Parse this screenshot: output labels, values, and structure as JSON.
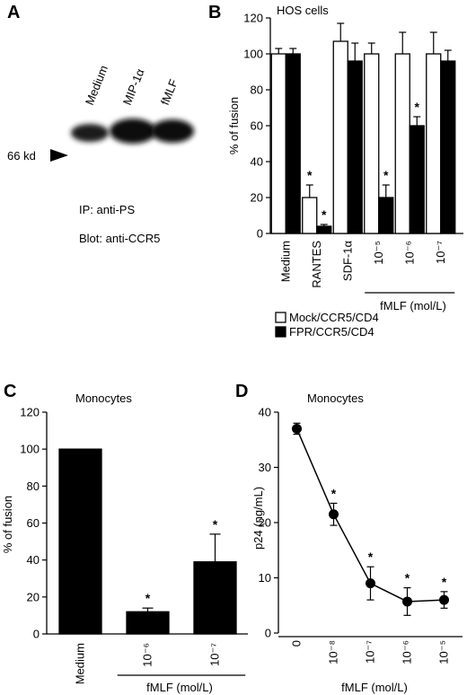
{
  "panel_a": {
    "letter": "A",
    "lanes": [
      "Medium",
      "MIP-1α",
      "fMLF"
    ],
    "marker": "66 kd",
    "ip": "IP: anti-PS",
    "blot": "Blot: anti-CCR5"
  },
  "chart_data": [
    {
      "id": "B",
      "letter": "B",
      "type": "bar",
      "title": "HOS cells",
      "xlabel": "fMLF (mol/L)",
      "ylabel": "% of fusion",
      "ylim": [
        0,
        120
      ],
      "yticks": [
        0,
        20,
        40,
        60,
        80,
        100,
        120
      ],
      "categories": [
        "Medium",
        "RANTES",
        "SDF-1α",
        "10⁻⁵",
        "10⁻⁶",
        "10⁻⁷"
      ],
      "bracket_categories": [
        "10⁻⁵",
        "10⁻⁶",
        "10⁻⁷"
      ],
      "legend_position": "bottom",
      "series": [
        {
          "name": "Mock/CCR5/CD4",
          "color": "#ffffff",
          "values": [
            100,
            20,
            107,
            100,
            100,
            100
          ],
          "errors": [
            3,
            7,
            10,
            6,
            12,
            12
          ],
          "significant": [
            false,
            true,
            false,
            false,
            false,
            false
          ]
        },
        {
          "name": "FPR/CCR5/CD4",
          "color": "#000000",
          "values": [
            100,
            4,
            96,
            20,
            60,
            96
          ],
          "errors": [
            3,
            1,
            10,
            7,
            5,
            6
          ],
          "significant": [
            false,
            true,
            false,
            true,
            true,
            false
          ]
        }
      ]
    },
    {
      "id": "C",
      "letter": "C",
      "type": "bar",
      "title": "Monocytes",
      "xlabel": "fMLF (mol/L)",
      "ylabel": "% of fusion",
      "ylim": [
        0,
        120
      ],
      "yticks": [
        0,
        20,
        40,
        60,
        80,
        100,
        120
      ],
      "categories": [
        "Medium",
        "10⁻⁶",
        "10⁻⁷"
      ],
      "bracket_categories": [
        "10⁻⁶",
        "10⁻⁷"
      ],
      "series": [
        {
          "color": "#000000",
          "values": [
            100,
            12,
            39
          ],
          "errors": [
            0,
            2,
            15
          ],
          "significant": [
            false,
            true,
            true
          ]
        }
      ]
    },
    {
      "id": "D",
      "letter": "D",
      "type": "line",
      "title": "Monocytes",
      "xlabel": "fMLF (mol/L)",
      "ylabel": "p24 (ng/mL)",
      "ylim": [
        0,
        40
      ],
      "yticks": [
        0,
        10,
        20,
        30,
        40
      ],
      "categories": [
        "0",
        "10⁻⁸",
        "10⁻⁷",
        "10⁻⁶",
        "10⁻⁵"
      ],
      "series": [
        {
          "color": "#000000",
          "values": [
            37,
            21.5,
            9,
            5.7,
            6
          ],
          "errors": [
            1,
            2,
            3,
            2.5,
            1.5
          ],
          "significant": [
            false,
            true,
            true,
            true,
            true
          ]
        }
      ]
    }
  ]
}
